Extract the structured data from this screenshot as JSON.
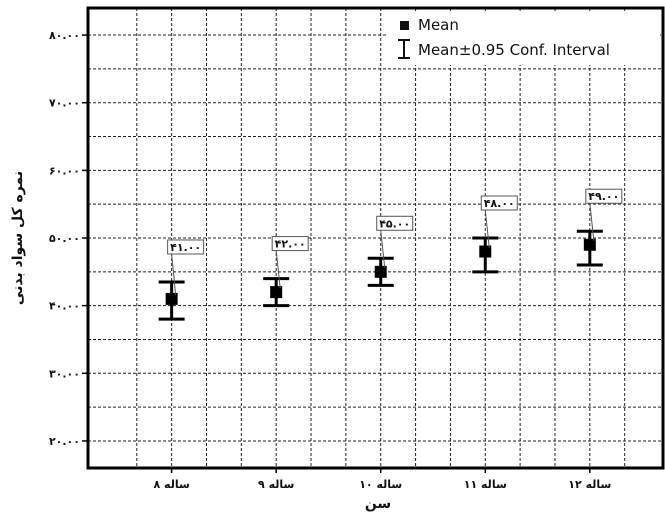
{
  "chart_data": {
    "type": "scatter",
    "title": "",
    "xlabel": "سن",
    "ylabel": "نمره کل سواد بدنی",
    "categories": [
      "۸ ساله",
      "۹ ساله",
      "۱۰ ساله",
      "۱۱ ساله",
      "۱۲ ساله"
    ],
    "y_ticks": [
      {
        "value": 20,
        "label": "۲۰.۰۰"
      },
      {
        "value": 30,
        "label": "۳۰.۰۰"
      },
      {
        "value": 40,
        "label": "۴۰.۰۰"
      },
      {
        "value": 50,
        "label": "۵۰.۰۰"
      },
      {
        "value": 60,
        "label": "۶۰.۰۰"
      },
      {
        "value": 70,
        "label": "۷۰.۰۰"
      },
      {
        "value": 80,
        "label": "۸۰.۰۰"
      }
    ],
    "ylim": [
      16,
      84
    ],
    "grid": true,
    "legend": {
      "position": "top-right",
      "entries": [
        "Mean",
        "Mean±0.95 Conf. Interval"
      ]
    },
    "series": [
      {
        "name": "Mean",
        "values": [
          41,
          42,
          45,
          48,
          49
        ],
        "ci_lower": [
          38,
          40,
          43,
          45,
          46
        ],
        "ci_upper": [
          43.5,
          44,
          47,
          50,
          51
        ],
        "data_labels": [
          "۴۱.۰۰",
          "۴۲.۰۰",
          "۴۵.۰۰",
          "۴۸.۰۰",
          "۴۹.۰۰"
        ]
      }
    ]
  }
}
